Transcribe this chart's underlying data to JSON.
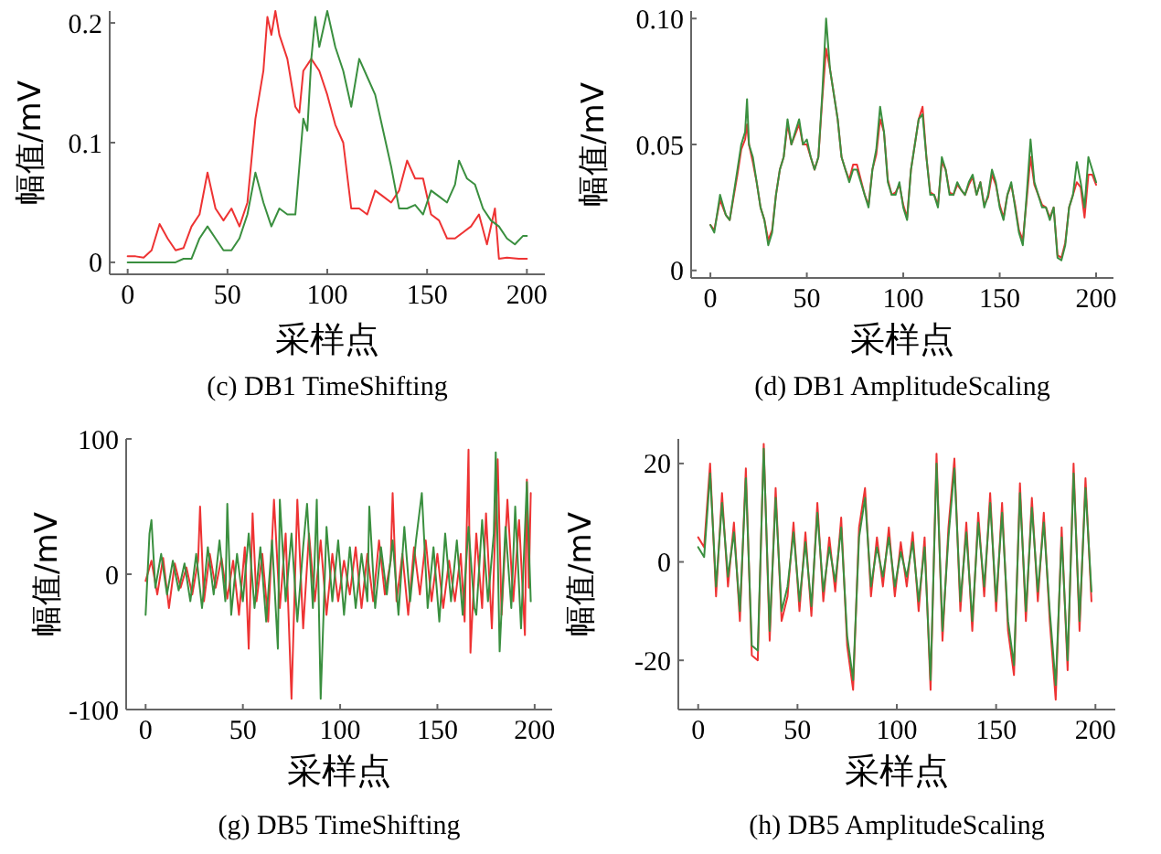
{
  "chart_data": [
    {
      "type": "line",
      "title": "(c) DB1 TimeShifting",
      "xlabel": "采样点",
      "ylabel": "幅值/mV",
      "xlim": [
        -9,
        209
      ],
      "ylim": [
        -0.01,
        0.21
      ],
      "xticks": [
        0,
        50,
        100,
        150,
        200
      ],
      "yticks": [
        0,
        0.1,
        0.2
      ],
      "series": [
        {
          "color": "#ee3333",
          "x": [
            0,
            4,
            8,
            12,
            16,
            20,
            24,
            28,
            32,
            36,
            40,
            44,
            48,
            52,
            56,
            60,
            64,
            68,
            70,
            72,
            74,
            76,
            80,
            84,
            86,
            88,
            92,
            96,
            100,
            104,
            108,
            112,
            116,
            120,
            124,
            128,
            132,
            136,
            140,
            144,
            148,
            152,
            156,
            160,
            164,
            168,
            172,
            176,
            180,
            184,
            186,
            190,
            196,
            200
          ],
          "values": [
            0.005,
            0.005,
            0.004,
            0.01,
            0.032,
            0.02,
            0.01,
            0.012,
            0.03,
            0.04,
            0.075,
            0.045,
            0.035,
            0.045,
            0.03,
            0.05,
            0.12,
            0.16,
            0.205,
            0.19,
            0.21,
            0.19,
            0.17,
            0.13,
            0.125,
            0.16,
            0.17,
            0.16,
            0.14,
            0.115,
            0.1,
            0.045,
            0.045,
            0.04,
            0.06,
            0.055,
            0.05,
            0.06,
            0.085,
            0.07,
            0.07,
            0.04,
            0.035,
            0.02,
            0.02,
            0.025,
            0.03,
            0.04,
            0.015,
            0.045,
            0.003,
            0.004,
            0.003,
            0.003
          ]
        },
        {
          "color": "#3a8f3f",
          "x": [
            0,
            20,
            24,
            28,
            32,
            36,
            40,
            44,
            48,
            52,
            56,
            60,
            64,
            68,
            72,
            76,
            80,
            84,
            88,
            90,
            92,
            94,
            96,
            100,
            104,
            108,
            112,
            116,
            120,
            124,
            128,
            132,
            136,
            140,
            144,
            148,
            152,
            156,
            160,
            164,
            166,
            170,
            174,
            178,
            182,
            186,
            190,
            194,
            198,
            200
          ],
          "values": [
            0,
            0,
            0,
            0.003,
            0.003,
            0.02,
            0.03,
            0.02,
            0.01,
            0.01,
            0.02,
            0.04,
            0.075,
            0.05,
            0.03,
            0.045,
            0.04,
            0.04,
            0.12,
            0.11,
            0.17,
            0.205,
            0.18,
            0.21,
            0.18,
            0.16,
            0.13,
            0.17,
            0.155,
            0.14,
            0.11,
            0.08,
            0.045,
            0.045,
            0.048,
            0.04,
            0.06,
            0.055,
            0.05,
            0.065,
            0.085,
            0.07,
            0.065,
            0.045,
            0.035,
            0.03,
            0.02,
            0.015,
            0.022,
            0.022
          ]
        }
      ]
    },
    {
      "type": "line",
      "title": "(d) DB1 AmplitudeScaling",
      "xlabel": "采样点",
      "ylabel": "幅值/mV",
      "xlim": [
        -10,
        209
      ],
      "ylim": [
        -0.003,
        0.103
      ],
      "xticks": [
        0,
        50,
        100,
        150,
        200
      ],
      "yticks": [
        0,
        0.05,
        {
          "value": 0.1,
          "label": "0.10"
        }
      ],
      "series": [
        {
          "color": "#ee3333",
          "x": [
            0,
            2,
            5,
            8,
            10,
            14,
            16,
            18,
            19,
            20,
            22,
            24,
            26,
            28,
            30,
            32,
            34,
            36,
            38,
            40,
            42,
            44,
            46,
            48,
            50,
            52,
            54,
            56,
            58,
            60,
            62,
            64,
            66,
            68,
            70,
            72,
            74,
            76,
            78,
            80,
            82,
            84,
            86,
            88,
            90,
            92,
            94,
            96,
            98,
            100,
            102,
            104,
            106,
            108,
            110,
            112,
            114,
            116,
            118,
            120,
            122,
            124,
            126,
            128,
            130,
            132,
            134,
            136,
            138,
            140,
            142,
            144,
            146,
            148,
            150,
            152,
            154,
            156,
            158,
            160,
            162,
            164,
            166,
            168,
            170,
            172,
            174,
            176,
            178,
            180,
            182,
            184,
            186,
            188,
            190,
            192,
            194,
            196,
            198,
            200
          ],
          "values": [
            0.018,
            0.016,
            0.028,
            0.022,
            0.02,
            0.038,
            0.048,
            0.052,
            0.058,
            0.05,
            0.043,
            0.035,
            0.025,
            0.02,
            0.012,
            0.016,
            0.03,
            0.04,
            0.045,
            0.058,
            0.05,
            0.054,
            0.058,
            0.05,
            0.05,
            0.045,
            0.04,
            0.045,
            0.068,
            0.088,
            0.08,
            0.07,
            0.06,
            0.045,
            0.04,
            0.036,
            0.042,
            0.042,
            0.036,
            0.03,
            0.026,
            0.04,
            0.046,
            0.06,
            0.055,
            0.036,
            0.03,
            0.031,
            0.034,
            0.026,
            0.021,
            0.04,
            0.05,
            0.06,
            0.065,
            0.045,
            0.031,
            0.03,
            0.026,
            0.043,
            0.04,
            0.031,
            0.03,
            0.034,
            0.032,
            0.03,
            0.034,
            0.037,
            0.03,
            0.035,
            0.026,
            0.029,
            0.038,
            0.034,
            0.026,
            0.021,
            0.03,
            0.034,
            0.026,
            0.016,
            0.012,
            0.028,
            0.045,
            0.034,
            0.03,
            0.026,
            0.025,
            0.021,
            0.025,
            0.006,
            0.005,
            0.011,
            0.025,
            0.03,
            0.035,
            0.033,
            0.021,
            0.038,
            0.038,
            0.034
          ]
        },
        {
          "color": "#3a8f3f",
          "x": [
            0,
            2,
            5,
            8,
            10,
            14,
            16,
            18,
            19,
            20,
            22,
            24,
            26,
            28,
            30,
            32,
            34,
            36,
            38,
            40,
            42,
            44,
            46,
            48,
            50,
            52,
            54,
            56,
            58,
            60,
            62,
            64,
            66,
            68,
            70,
            72,
            74,
            76,
            78,
            80,
            82,
            84,
            86,
            88,
            90,
            92,
            94,
            96,
            98,
            100,
            102,
            104,
            106,
            108,
            110,
            112,
            114,
            116,
            118,
            120,
            122,
            124,
            126,
            128,
            130,
            132,
            134,
            136,
            138,
            140,
            142,
            144,
            146,
            148,
            150,
            152,
            154,
            156,
            158,
            160,
            162,
            164,
            166,
            168,
            170,
            172,
            174,
            176,
            178,
            180,
            182,
            184,
            186,
            188,
            190,
            192,
            194,
            196,
            198,
            200
          ],
          "values": [
            0.018,
            0.015,
            0.03,
            0.022,
            0.02,
            0.04,
            0.05,
            0.055,
            0.068,
            0.05,
            0.045,
            0.035,
            0.025,
            0.02,
            0.01,
            0.015,
            0.03,
            0.04,
            0.045,
            0.06,
            0.05,
            0.055,
            0.06,
            0.05,
            0.052,
            0.045,
            0.04,
            0.045,
            0.07,
            0.1,
            0.08,
            0.07,
            0.06,
            0.045,
            0.04,
            0.035,
            0.04,
            0.04,
            0.035,
            0.03,
            0.025,
            0.04,
            0.048,
            0.065,
            0.055,
            0.035,
            0.03,
            0.03,
            0.035,
            0.025,
            0.02,
            0.04,
            0.05,
            0.06,
            0.062,
            0.045,
            0.03,
            0.03,
            0.025,
            0.045,
            0.04,
            0.03,
            0.03,
            0.035,
            0.032,
            0.03,
            0.035,
            0.038,
            0.03,
            0.035,
            0.025,
            0.03,
            0.04,
            0.035,
            0.025,
            0.02,
            0.03,
            0.035,
            0.025,
            0.015,
            0.01,
            0.03,
            0.052,
            0.035,
            0.03,
            0.025,
            0.025,
            0.02,
            0.025,
            0.005,
            0.004,
            0.01,
            0.025,
            0.03,
            0.043,
            0.035,
            0.025,
            0.045,
            0.04,
            0.035
          ]
        }
      ]
    },
    {
      "type": "line",
      "title": "(g) DB5 TimeShifting",
      "xlabel": "采样点",
      "ylabel": "幅值/mV",
      "xlim": [
        -10,
        209
      ],
      "ylim": [
        -100,
        100
      ],
      "xticks": [
        0,
        50,
        100,
        150,
        200
      ],
      "yticks": [
        -100,
        0,
        100
      ],
      "series": [
        {
          "color": "#ee3333",
          "x": [
            0,
            3,
            6,
            9,
            12,
            15,
            18,
            21,
            24,
            27,
            28,
            30,
            33,
            36,
            39,
            42,
            45,
            48,
            51,
            53,
            55,
            57,
            60,
            63,
            66,
            69,
            72,
            75,
            78,
            81,
            84,
            87,
            90,
            93,
            96,
            99,
            102,
            105,
            108,
            111,
            114,
            117,
            120,
            123,
            126,
            127,
            129,
            132,
            135,
            138,
            141,
            144,
            147,
            150,
            153,
            156,
            159,
            162,
            164,
            166,
            167,
            170,
            173,
            175,
            178,
            181,
            183,
            186,
            189,
            192,
            195,
            196,
            197,
            198
          ],
          "values": [
            -5,
            10,
            -15,
            12,
            -25,
            8,
            -10,
            5,
            -15,
            10,
            50,
            -20,
            15,
            -10,
            12,
            -18,
            10,
            -30,
            20,
            -55,
            45,
            -20,
            15,
            -35,
            55,
            -25,
            30,
            -92,
            55,
            -40,
            30,
            -20,
            25,
            -30,
            15,
            -20,
            10,
            -15,
            20,
            -25,
            15,
            -20,
            25,
            -15,
            10,
            60,
            -20,
            15,
            -30,
            20,
            -15,
            25,
            -20,
            15,
            -25,
            10,
            -20,
            15,
            -35,
            92,
            -58,
            30,
            -25,
            45,
            -40,
            85,
            -30,
            55,
            -20,
            40,
            -45,
            70,
            -10,
            60
          ]
        },
        {
          "color": "#3a8f3f",
          "x": [
            0,
            2,
            3,
            5,
            8,
            11,
            14,
            17,
            20,
            23,
            26,
            29,
            32,
            35,
            38,
            41,
            42,
            44,
            47,
            50,
            53,
            56,
            59,
            62,
            65,
            68,
            69,
            72,
            75,
            78,
            81,
            83,
            86,
            88,
            90,
            93,
            96,
            99,
            102,
            105,
            108,
            111,
            114,
            115,
            118,
            121,
            124,
            127,
            130,
            133,
            136,
            139,
            142,
            145,
            148,
            151,
            154,
            157,
            160,
            163,
            166,
            169,
            170,
            173,
            176,
            179,
            180,
            182,
            185,
            188,
            190,
            193,
            196,
            198
          ],
          "values": [
            -30,
            30,
            40,
            -10,
            15,
            -15,
            10,
            -12,
            8,
            -20,
            15,
            -25,
            20,
            -15,
            25,
            -20,
            52,
            -30,
            15,
            -20,
            30,
            -25,
            20,
            -35,
            25,
            -55,
            55,
            -20,
            30,
            -35,
            20,
            52,
            -25,
            55,
            -92,
            35,
            -20,
            25,
            -30,
            20,
            -25,
            15,
            -20,
            50,
            -25,
            20,
            -15,
            25,
            -30,
            35,
            -20,
            25,
            60,
            -25,
            20,
            -35,
            30,
            -20,
            25,
            -30,
            35,
            -25,
            -30,
            40,
            -20,
            30,
            90,
            -57,
            35,
            -25,
            50,
            -40,
            68,
            -20
          ]
        }
      ]
    },
    {
      "type": "line",
      "title": "(h) DB5 AmplitudeScaling",
      "xlabel": "采样点",
      "ylabel": "幅值/mV",
      "xlim": [
        -10,
        210
      ],
      "ylim": [
        -30,
        25
      ],
      "xticks": [
        0,
        50,
        100,
        150,
        200
      ],
      "yticks": [
        -20,
        0,
        20
      ],
      "series": [
        {
          "color": "#ee3333",
          "x": [
            0,
            3,
            6,
            9,
            12,
            15,
            18,
            21,
            24,
            27,
            30,
            33,
            36,
            39,
            42,
            45,
            48,
            51,
            54,
            57,
            60,
            63,
            66,
            69,
            72,
            75,
            78,
            81,
            84,
            87,
            90,
            93,
            96,
            99,
            102,
            105,
            108,
            111,
            114,
            117,
            120,
            123,
            126,
            129,
            132,
            135,
            138,
            141,
            144,
            147,
            150,
            153,
            156,
            159,
            162,
            165,
            168,
            171,
            174,
            177,
            180,
            183,
            186,
            189,
            192,
            195,
            198
          ],
          "values": [
            5,
            3,
            20,
            -7,
            14,
            -5,
            8,
            -12,
            19,
            -19,
            -20,
            24,
            -16,
            15,
            -12,
            -7,
            8,
            -10,
            6,
            -11,
            12,
            -8,
            5,
            -6,
            9,
            -17,
            -26,
            7,
            15,
            -7,
            5,
            -5,
            7,
            -7,
            4,
            -5,
            6,
            -10,
            5,
            -26,
            22,
            -16,
            7,
            21,
            -10,
            8,
            -14,
            10,
            -7,
            14,
            -10,
            12,
            -14,
            -23,
            16,
            -12,
            13,
            -8,
            10,
            -12,
            -28,
            7,
            -22,
            20,
            -14,
            17,
            -8
          ]
        },
        {
          "color": "#3a8f3f",
          "x": [
            0,
            3,
            6,
            9,
            12,
            15,
            18,
            21,
            24,
            27,
            30,
            33,
            36,
            39,
            42,
            45,
            48,
            51,
            54,
            57,
            60,
            63,
            66,
            69,
            72,
            75,
            78,
            81,
            84,
            87,
            90,
            93,
            96,
            99,
            102,
            105,
            108,
            111,
            114,
            117,
            120,
            123,
            126,
            129,
            132,
            135,
            138,
            141,
            144,
            147,
            150,
            153,
            156,
            159,
            162,
            165,
            168,
            171,
            174,
            177,
            180,
            183,
            186,
            189,
            192,
            195,
            198
          ],
          "values": [
            3,
            1,
            18,
            -5,
            12,
            -3,
            6,
            -10,
            17,
            -17,
            -18,
            23,
            -14,
            13,
            -10,
            -5,
            6,
            -8,
            4,
            -9,
            10,
            -6,
            3,
            -4,
            7,
            -15,
            -24,
            5,
            13,
            -5,
            3,
            -3,
            5,
            -5,
            2,
            -3,
            4,
            -8,
            3,
            -24,
            20,
            -14,
            5,
            19,
            -8,
            6,
            -12,
            8,
            -5,
            12,
            -8,
            10,
            -12,
            -21,
            14,
            -10,
            11,
            -6,
            8,
            -10,
            -25,
            5,
            -20,
            18,
            -12,
            15,
            -6
          ]
        }
      ]
    }
  ]
}
